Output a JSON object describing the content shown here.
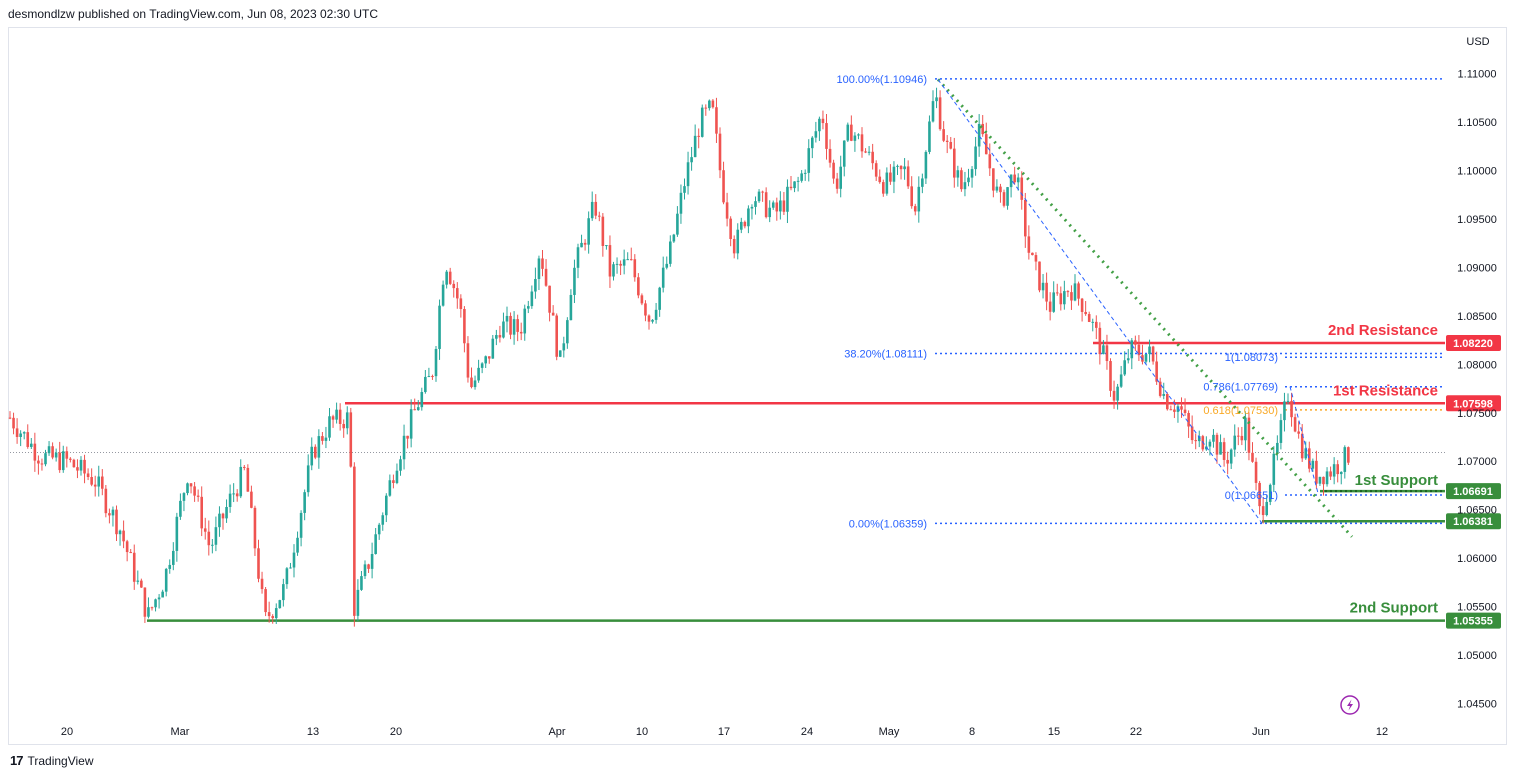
{
  "header": {
    "published": "desmondlzw published on TradingView.com, Jun 08, 2023 02:30 UTC"
  },
  "footer": {
    "brand": "TradingView",
    "logo_glyph": "17"
  },
  "colors": {
    "up": "#26a69a",
    "down": "#ef5350",
    "resistance": "#f23645",
    "support": "#388e3c",
    "fib_blue": "#2962ff",
    "fib_gold": "#f9a825",
    "trend_green": "#43a047",
    "grid": "#e0e3eb"
  },
  "chart_data": {
    "type": "candlestick",
    "symbol_currency": "USD",
    "ylim": [
      1.0435,
      1.1145
    ],
    "yticks": [
      "1.11000",
      "1.10500",
      "1.10000",
      "1.09500",
      "1.09000",
      "1.08500",
      "1.08000",
      "1.07500",
      "1.07000",
      "1.06500",
      "1.06000",
      "1.05500",
      "1.05000",
      "1.04500"
    ],
    "xticks": [
      "20",
      "Mar",
      "13",
      "20",
      "Apr",
      "10",
      "17",
      "24",
      "May",
      "8",
      "15",
      "22",
      "Jun",
      "12"
    ],
    "levels": [
      {
        "name": "2nd Resistance",
        "value": "1.08220",
        "kind": "resistance"
      },
      {
        "name": "1st Resistance",
        "value": "1.07598",
        "kind": "resistance"
      },
      {
        "name": "1st Support",
        "value": "1.06691",
        "kind": "support"
      },
      {
        "name": "",
        "value": "1.06381",
        "kind": "support"
      },
      {
        "name": "2nd Support",
        "value": "1.05355",
        "kind": "support"
      }
    ],
    "fib_labels": [
      {
        "text": "100.00%(1.10946)",
        "value": 1.10946
      },
      {
        "text": "38.20%(1.08111)",
        "value": 1.08111
      },
      {
        "text": "0.00%(1.06359)",
        "value": 1.06359
      },
      {
        "text": "1(1.08073)",
        "value": 1.08073
      },
      {
        "text": "0.786(1.07769)",
        "value": 1.07769
      },
      {
        "text": "0.618(1.07530)",
        "value": 1.0753
      },
      {
        "text": "0(1.06651)",
        "value": 1.06651
      }
    ],
    "last_price": 1.0709
  }
}
